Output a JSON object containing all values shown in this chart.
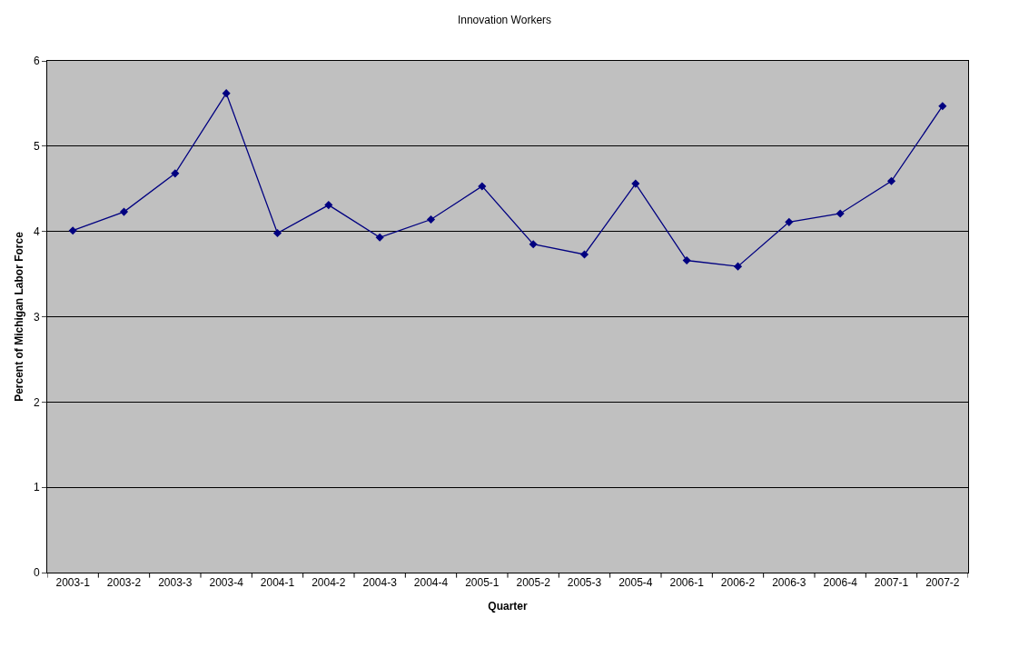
{
  "chart_data": {
    "type": "line",
    "title": "Innovation Workers",
    "xlabel": "Quarter",
    "ylabel": "Percent of Michigan Labor Force",
    "categories": [
      "2003-1",
      "2003-2",
      "2003-3",
      "2003-4",
      "2004-1",
      "2004-2",
      "2004-3",
      "2004-4",
      "2005-1",
      "2005-2",
      "2005-3",
      "2005-4",
      "2006-1",
      "2006-2",
      "2006-3",
      "2006-4",
      "2007-1",
      "2007-2"
    ],
    "series": [
      {
        "color": "#000080",
        "values": [
          4.01,
          4.23,
          4.68,
          5.62,
          3.98,
          4.31,
          3.93,
          4.14,
          4.53,
          3.85,
          3.73,
          4.56,
          3.66,
          3.59,
          4.11,
          4.21,
          4.59,
          5.47
        ]
      }
    ],
    "ylim": [
      0,
      6
    ],
    "yticks": [
      0,
      1,
      2,
      3,
      4,
      5,
      6
    ],
    "grid": "y",
    "legend": false,
    "marker": "diamond",
    "line_style": "solid"
  }
}
